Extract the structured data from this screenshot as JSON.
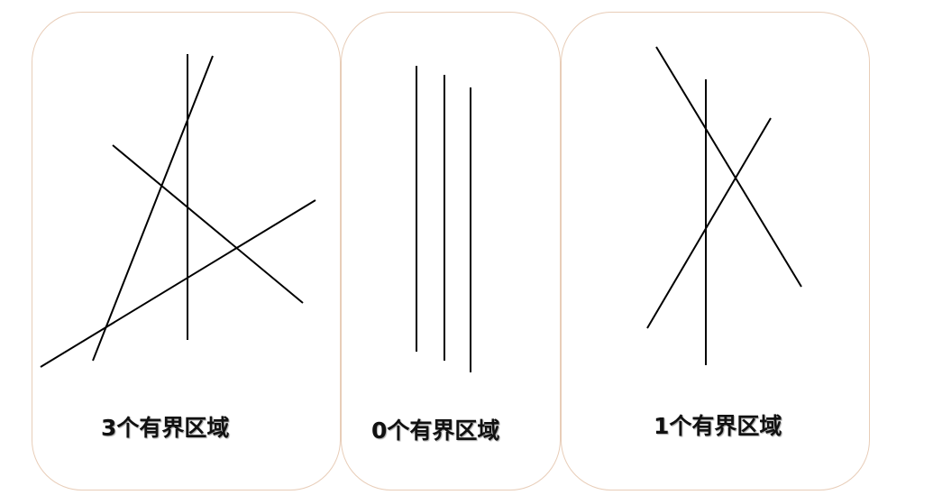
{
  "panels": [
    {
      "caption": "3个有界区域",
      "line_count": 4,
      "bounded_regions": 3
    },
    {
      "caption": "0个有界区域",
      "line_count": 3,
      "bounded_regions": 0
    },
    {
      "caption": "1个有界区域",
      "line_count": 3,
      "bounded_regions": 1
    }
  ],
  "colors": {
    "card_border": "#e8cdb8",
    "line": "#000000",
    "text": "#111111"
  }
}
